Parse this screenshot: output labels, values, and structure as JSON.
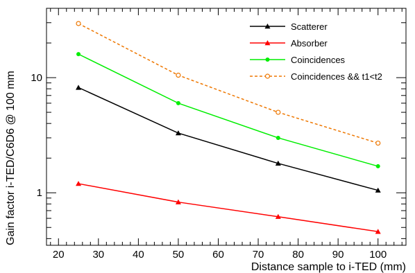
{
  "chart_data": {
    "type": "line",
    "xlabel": "Distance sample to i-TED (mm)",
    "ylabel": "Gain factor i-TED/C6D6 @ 100 mm",
    "xlim": [
      17,
      107
    ],
    "ylim": [
      0.35,
      40
    ],
    "yscale": "log",
    "grid": false,
    "legend_position": "top-right",
    "x_ticks": [
      20,
      30,
      40,
      50,
      60,
      70,
      80,
      90,
      100
    ],
    "x_tick_labels": [
      "20",
      "30",
      "40",
      "50",
      "60",
      "70",
      "80",
      "90",
      "100"
    ],
    "y_ticks": [
      1,
      10
    ],
    "y_tick_labels": [
      "1",
      "10"
    ],
    "x": [
      25,
      50,
      75,
      100
    ],
    "series": [
      {
        "name": "Scatterer",
        "values": [
          8.2,
          3.3,
          1.8,
          1.05
        ],
        "color": "#000000",
        "marker": "triangle",
        "dash": "solid"
      },
      {
        "name": "Absorber",
        "values": [
          1.2,
          0.83,
          0.62,
          0.46
        ],
        "color": "#ff0000",
        "marker": "triangle",
        "dash": "solid"
      },
      {
        "name": "Coincidences",
        "values": [
          16,
          6.0,
          3.0,
          1.7
        ],
        "color": "#00ee00",
        "marker": "circle",
        "dash": "solid"
      },
      {
        "name": "Coincidences && t1<t2",
        "values": [
          29.5,
          10.5,
          5.0,
          2.7
        ],
        "color": "#ee7700",
        "marker": "open-circle",
        "dash": "dashed"
      }
    ]
  }
}
